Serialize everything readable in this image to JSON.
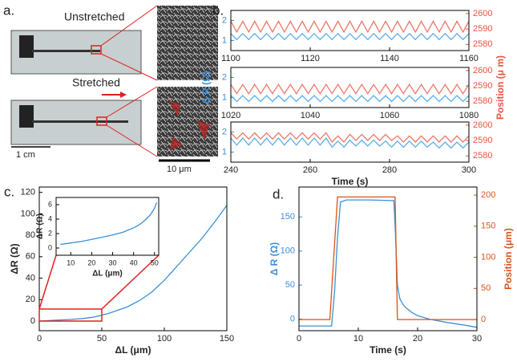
{
  "panel_a": {
    "label": "a.",
    "unstretched": "Unstretched",
    "stretched": "Stretched",
    "scale_device": "1 cm",
    "scale_sem": "10 μm"
  },
  "chart_data": [
    {
      "type": "line",
      "panel_label": "b.",
      "y_axis_color": "#3a8fd8",
      "y2_axis_color": "#e8543c",
      "xlim": [
        1100,
        1160
      ],
      "xticks": [
        1100,
        1120,
        1140,
        1160
      ],
      "ylim": [
        0.5,
        2.5
      ],
      "yticks": [
        1,
        2
      ],
      "y2lim": [
        2576,
        2602
      ],
      "y2ticks": [
        2580,
        2590,
        2600
      ],
      "x": [
        1100,
        1101.5,
        1103,
        1104.5,
        1106,
        1107.5,
        1109,
        1110.5,
        1112,
        1113.5,
        1115,
        1116.5,
        1118,
        1119.5,
        1121,
        1122.5,
        1124,
        1125.5,
        1127,
        1128.5,
        1130,
        1131.5,
        1133,
        1134.5,
        1136,
        1137.5,
        1139,
        1140.5,
        1142,
        1143.5,
        1145,
        1146.5,
        1148,
        1149.5,
        1151,
        1152.5,
        1154,
        1155.5,
        1157,
        1158.5,
        1160
      ],
      "series": [
        {
          "color": "#5aaee8",
          "values": [
            1.35,
            1.05,
            1.35,
            1.05,
            1.35,
            1.05,
            1.35,
            1.05,
            1.35,
            1.05,
            1.35,
            1.05,
            1.35,
            1.05,
            1.35,
            1.05,
            1.35,
            1.05,
            1.35,
            1.05,
            1.35,
            1.05,
            1.35,
            1.05,
            1.35,
            1.05,
            1.35,
            1.05,
            1.35,
            1.05,
            1.35,
            1.05,
            1.35,
            1.05,
            1.35,
            1.05,
            1.35,
            1.05,
            1.35,
            1.05,
            1.35
          ]
        },
        {
          "color": "#ee7766",
          "axis": "y2",
          "values": [
            2595,
            2588,
            2595,
            2588,
            2595,
            2588,
            2595,
            2588,
            2595,
            2588,
            2595,
            2588,
            2595,
            2588,
            2595,
            2588,
            2595,
            2588,
            2595,
            2588,
            2595,
            2588,
            2595,
            2588,
            2595,
            2588,
            2595,
            2588,
            2595,
            2588,
            2595,
            2588,
            2595,
            2588,
            2595,
            2588,
            2595,
            2588,
            2595,
            2588,
            2595
          ]
        }
      ]
    },
    {
      "type": "line",
      "y_axis_color": "#3a8fd8",
      "y2_axis_color": "#e8543c",
      "ylabel": "Δ R (Ω)",
      "y2label": "Position (μ m)",
      "xlim": [
        1020,
        1080
      ],
      "xticks": [
        1020,
        1040,
        1060,
        1080
      ],
      "ylim": [
        0.5,
        2.5
      ],
      "yticks": [
        1,
        2
      ],
      "y2lim": [
        2576,
        2602
      ],
      "y2ticks": [
        2580,
        2590,
        2600
      ],
      "x": [
        1020,
        1021.5,
        1023,
        1024.5,
        1026,
        1027.5,
        1029,
        1030.5,
        1032,
        1033.5,
        1035,
        1036.5,
        1038,
        1039.5,
        1041,
        1042.5,
        1044,
        1045.5,
        1047,
        1048.5,
        1050,
        1051.5,
        1053,
        1054.5,
        1056,
        1057.5,
        1059,
        1060.5,
        1062,
        1063.5,
        1065,
        1066.5,
        1068,
        1069.5,
        1071,
        1072.5,
        1074,
        1075.5,
        1077,
        1078.5,
        1080
      ],
      "series": [
        {
          "color": "#5aaee8",
          "values": [
            1.1,
            0.8,
            1.1,
            0.8,
            1.1,
            0.8,
            1.1,
            0.8,
            1.1,
            0.8,
            1.1,
            0.8,
            1.1,
            0.8,
            1.1,
            0.8,
            1.1,
            0.8,
            1.1,
            0.8,
            1.1,
            0.8,
            1.1,
            0.8,
            1.1,
            0.8,
            1.1,
            0.8,
            1.1,
            0.8,
            1.1,
            0.8,
            1.1,
            0.8,
            1.1,
            0.8,
            1.1,
            0.8,
            1.1,
            0.8,
            1.1
          ]
        },
        {
          "color": "#ee7766",
          "axis": "y2",
          "values": [
            2591,
            2585,
            2591,
            2585,
            2591,
            2585,
            2591,
            2585,
            2591,
            2585,
            2591,
            2585,
            2591,
            2585,
            2591,
            2585,
            2591,
            2585,
            2591,
            2585,
            2591,
            2585,
            2591,
            2585,
            2591,
            2585,
            2591,
            2585,
            2591,
            2585,
            2591,
            2585,
            2591,
            2585,
            2591,
            2585,
            2591,
            2585,
            2591,
            2585,
            2591
          ]
        }
      ]
    },
    {
      "type": "line",
      "y_axis_color": "#3a8fd8",
      "y2_axis_color": "#e8543c",
      "xlabel": "Time (s)",
      "xlim": [
        240,
        300
      ],
      "xticks": [
        240,
        260,
        280,
        300
      ],
      "ylim": [
        0.5,
        2.5
      ],
      "yticks": [
        1,
        2
      ],
      "y2lim": [
        2576,
        2602
      ],
      "y2ticks": [
        2580,
        2590,
        2600
      ],
      "x": [
        240,
        241.5,
        243,
        244.5,
        246,
        247.5,
        249,
        250.5,
        252,
        253.5,
        255,
        256.5,
        258,
        259.5,
        261,
        262.5,
        264,
        265.5,
        267,
        268.5,
        270,
        271.5,
        273,
        274.5,
        276,
        277.5,
        279,
        280.5,
        282,
        283.5,
        285,
        286.5,
        288,
        289.5,
        291,
        292.5,
        294,
        295.5,
        297,
        298.5,
        300
      ],
      "series": [
        {
          "color": "#5aaee8",
          "values": [
            1.7,
            1.35,
            1.7,
            1.35,
            1.7,
            1.35,
            1.7,
            1.35,
            1.7,
            1.35,
            1.7,
            1.35,
            1.7,
            1.35,
            1.7,
            1.35,
            1.7,
            1.25,
            1.55,
            1.25,
            1.6,
            1.3,
            1.6,
            1.3,
            1.6,
            1.3,
            1.55,
            1.25,
            1.55,
            1.25,
            1.55,
            1.25,
            1.55,
            1.25,
            1.5,
            1.2,
            1.5,
            1.2,
            1.5,
            1.2,
            1.5
          ]
        },
        {
          "color": "#ee7766",
          "axis": "y2",
          "values": [
            2595,
            2591,
            2595,
            2591,
            2595,
            2591,
            2595,
            2591,
            2595,
            2591,
            2595,
            2591,
            2595,
            2591,
            2595,
            2591,
            2595,
            2589,
            2593,
            2589,
            2594,
            2590,
            2594,
            2590,
            2594,
            2590,
            2594,
            2590,
            2593,
            2589,
            2593,
            2589,
            2593,
            2589,
            2593,
            2589,
            2593,
            2589,
            2593,
            2589,
            2593
          ]
        }
      ]
    },
    {
      "type": "line",
      "panel_label": "c.",
      "ylabel": "ΔR (Ω)",
      "xlabel": "ΔL (μm)",
      "xlim": [
        0,
        150
      ],
      "xticks": [
        0,
        50,
        100,
        150
      ],
      "ylim": [
        -9,
        125
      ],
      "yticks": [
        0,
        20,
        40,
        60,
        80,
        100,
        120
      ],
      "x": [
        0,
        5,
        10,
        15,
        20,
        25,
        30,
        35,
        40,
        45,
        50,
        55,
        60,
        70,
        80,
        90,
        100,
        110,
        120,
        130,
        140,
        150
      ],
      "series": [
        {
          "color": "#3a8fd8",
          "values": [
            0,
            0.3,
            0.6,
            0.9,
            1.2,
            1.5,
            1.9,
            2.4,
            3.1,
            4.0,
            5.5,
            7,
            9,
            13,
            19,
            27,
            38,
            51,
            64,
            77,
            92,
            108
          ]
        }
      ]
    },
    {
      "type": "line",
      "ylabel": "ΔR (Ω)",
      "xlabel": "ΔL (μm)",
      "xlim": [
        3,
        52
      ],
      "xticks": [
        10,
        20,
        30,
        40,
        50
      ],
      "ylim": [
        -1,
        7
      ],
      "yticks": [
        0,
        2,
        4,
        6
      ],
      "x": [
        5,
        10,
        15,
        20,
        25,
        30,
        35,
        40,
        42,
        44,
        46,
        48,
        50,
        51
      ],
      "series": [
        {
          "color": "#3a8fd8",
          "values": [
            0.5,
            0.7,
            0.9,
            1.2,
            1.5,
            1.8,
            2.2,
            2.8,
            3.1,
            3.5,
            4.0,
            4.6,
            5.5,
            6.3
          ]
        }
      ]
    },
    {
      "type": "line",
      "panel_label": "d.",
      "y_axis_color": "#3a8fd8",
      "y2_axis_color": "#d95319",
      "ylabel": "Δ R (Ω)",
      "y2label": "Position (μm)",
      "xlabel": "Time (s)",
      "xlim": [
        0,
        30
      ],
      "xticks": [
        0,
        10,
        20,
        30
      ],
      "ylim": [
        -17,
        194
      ],
      "yticks": [
        0,
        50,
        100,
        150
      ],
      "y2lim": [
        -18,
        213
      ],
      "y2ticks": [
        0,
        50,
        100,
        150,
        200
      ],
      "series": [
        {
          "color": "#3a8fd8",
          "x": [
            0,
            5.5,
            6,
            6.5,
            7,
            8,
            12,
            16,
            16.3,
            16.6,
            17,
            17.5,
            18,
            19,
            20,
            22,
            25,
            28,
            30
          ],
          "values": [
            -10,
            -10,
            40,
            120,
            172,
            175,
            175,
            174,
            120,
            50,
            30,
            22,
            17,
            10,
            5,
            0,
            -5,
            -9,
            -12
          ]
        },
        {
          "color": "#d95319",
          "axis": "y2",
          "x": [
            0,
            5.2,
            6.5,
            16.2,
            16.6,
            30
          ],
          "values": [
            0,
            0,
            197,
            197,
            0,
            0
          ]
        }
      ]
    }
  ]
}
